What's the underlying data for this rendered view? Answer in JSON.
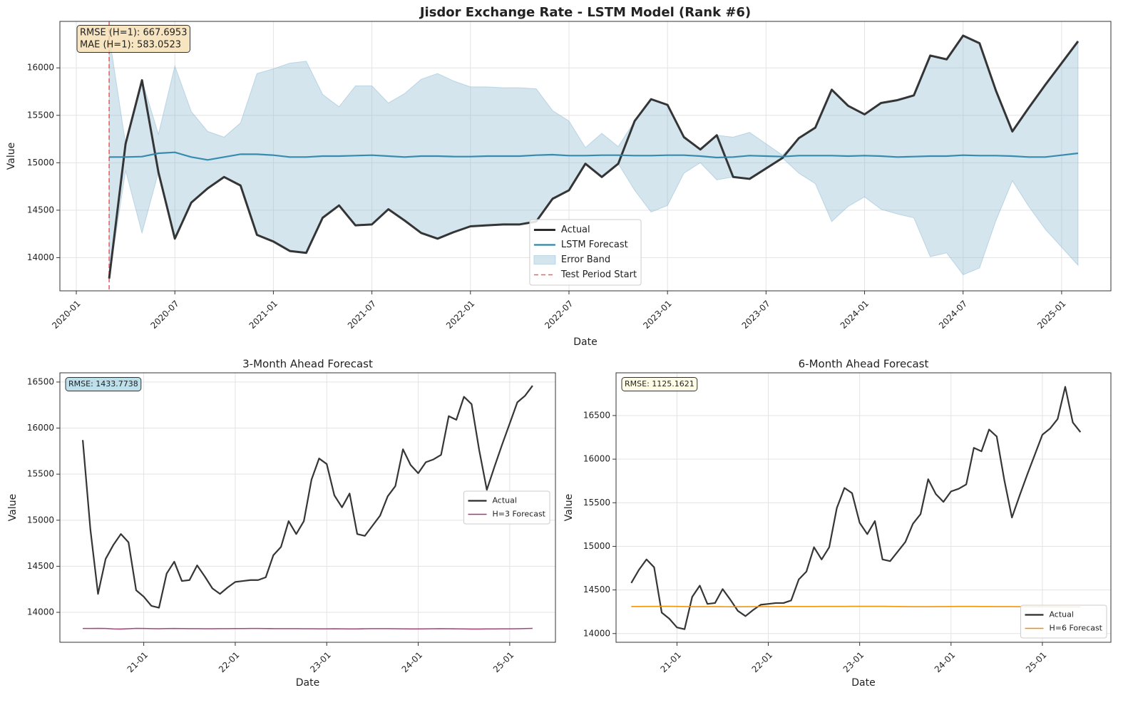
{
  "chart_data": [
    {
      "type": "line",
      "title": "Jisdor Exchange Rate - LSTM Model (Rank #6)",
      "x_label": "Date",
      "y_label": "Value",
      "x": [
        "2020-03",
        "2020-04",
        "2020-05",
        "2020-06",
        "2020-07",
        "2020-08",
        "2020-09",
        "2020-10",
        "2020-11",
        "2020-12",
        "2021-01",
        "2021-02",
        "2021-03",
        "2021-04",
        "2021-05",
        "2021-06",
        "2021-07",
        "2021-08",
        "2021-09",
        "2021-10",
        "2021-11",
        "2021-12",
        "2022-01",
        "2022-02",
        "2022-03",
        "2022-04",
        "2022-05",
        "2022-06",
        "2022-07",
        "2022-08",
        "2022-09",
        "2022-10",
        "2022-11",
        "2022-12",
        "2023-01",
        "2023-02",
        "2023-03",
        "2023-04",
        "2023-05",
        "2023-06",
        "2023-07",
        "2023-08",
        "2023-09",
        "2023-10",
        "2023-11",
        "2023-12",
        "2024-01",
        "2024-02",
        "2024-03",
        "2024-04",
        "2024-05",
        "2024-06",
        "2024-07",
        "2024-08",
        "2024-09",
        "2024-10",
        "2024-11",
        "2024-12",
        "2025-01",
        "2025-02"
      ],
      "series": [
        {
          "name": "Actual",
          "color": "#2b2b2b",
          "values": [
            13780,
            15200,
            15870,
            14900,
            14200,
            14580,
            14730,
            14850,
            14760,
            14240,
            14170,
            14070,
            14050,
            14420,
            14550,
            14340,
            14350,
            14510,
            14390,
            14260,
            14200,
            14270,
            14330,
            14340,
            14350,
            14350,
            14380,
            14620,
            14710,
            14990,
            14850,
            14990,
            15440,
            15670,
            15610,
            15270,
            15140,
            15290,
            14850,
            14830,
            14940,
            15050,
            15260,
            15370,
            15770,
            15600,
            15510,
            15630,
            15660,
            15710,
            16130,
            16090,
            16340,
            16260,
            15760,
            15330,
            15580,
            15820,
            16050,
            16280
          ]
        },
        {
          "name": "LSTM Forecast",
          "color": "#2e86ab",
          "values": [
            15060,
            15060,
            15065,
            15100,
            15110,
            15060,
            15030,
            15060,
            15090,
            15090,
            15080,
            15060,
            15060,
            15070,
            15070,
            15075,
            15080,
            15070,
            15060,
            15070,
            15070,
            15065,
            15065,
            15070,
            15070,
            15070,
            15080,
            15085,
            15075,
            15075,
            15080,
            15080,
            15075,
            15075,
            15080,
            15080,
            15070,
            15055,
            15060,
            15075,
            15070,
            15065,
            15075,
            15075,
            15075,
            15070,
            15075,
            15070,
            15060,
            15065,
            15070,
            15070,
            15080,
            15075,
            15075,
            15070,
            15060,
            15060,
            15080,
            15100
          ]
        }
      ],
      "band": {
        "name": "Error Band",
        "color": "#8ebad3",
        "upper": [
          16340,
          15200,
          15870,
          15300,
          16020,
          15540,
          15330,
          15270,
          15420,
          15940,
          15990,
          16050,
          16070,
          15720,
          15590,
          15810,
          15810,
          15630,
          15730,
          15880,
          15940,
          15860,
          15800,
          15800,
          15790,
          15790,
          15780,
          15550,
          15440,
          15160,
          15310,
          15170,
          15440,
          15670,
          15610,
          15270,
          15140,
          15290,
          15270,
          15320,
          15200,
          15080,
          15260,
          15370,
          15770,
          15600,
          15510,
          15630,
          15660,
          15710,
          16130,
          16090,
          16340,
          16260,
          15760,
          15330,
          15580,
          15820,
          16050,
          16280
        ],
        "lower": [
          13780,
          14920,
          14260,
          14900,
          14200,
          14580,
          14730,
          14850,
          14760,
          14240,
          14170,
          14070,
          14050,
          14420,
          14550,
          14340,
          14350,
          14510,
          14390,
          14260,
          14200,
          14270,
          14330,
          14340,
          14350,
          14350,
          14380,
          14620,
          14710,
          14990,
          14850,
          14990,
          14710,
          14480,
          14550,
          14890,
          15000,
          14820,
          14850,
          14830,
          14940,
          15050,
          14890,
          14780,
          14380,
          14540,
          14640,
          14510,
          14460,
          14420,
          14010,
          14050,
          13820,
          13890,
          14390,
          14810,
          14540,
          14300,
          14110,
          13920
        ]
      },
      "vline": {
        "name": "Test Period Start",
        "color": "#f06060",
        "x": "2020-03"
      },
      "xlim": [
        "2019-12",
        "2025-04"
      ],
      "ylim": [
        13650,
        16490
      ],
      "xticks": [
        "2020-01",
        "2020-07",
        "2021-01",
        "2021-07",
        "2022-01",
        "2022-07",
        "2023-01",
        "2023-07",
        "2024-01",
        "2024-07",
        "2025-01"
      ],
      "yticks": [
        14000,
        14500,
        15000,
        15500,
        16000
      ],
      "grid": true,
      "legend": "lower center",
      "annotation": {
        "lines": [
          "RMSE (H=1): 667.6953",
          "MAE (H=1): 583.0523"
        ],
        "color": "#f5deb3"
      }
    },
    {
      "type": "line",
      "title": "3-Month Ahead Forecast",
      "x_label": "Date",
      "y_label": "Value",
      "x": [
        "2020-05",
        "2020-06",
        "2020-07",
        "2020-08",
        "2020-09",
        "2020-10",
        "2020-11",
        "2020-12",
        "2021-01",
        "2021-02",
        "2021-03",
        "2021-04",
        "2021-05",
        "2021-06",
        "2021-07",
        "2021-08",
        "2021-09",
        "2021-10",
        "2021-11",
        "2021-12",
        "2022-01",
        "2022-02",
        "2022-03",
        "2022-04",
        "2022-05",
        "2022-06",
        "2022-07",
        "2022-08",
        "2022-09",
        "2022-10",
        "2022-11",
        "2022-12",
        "2023-01",
        "2023-02",
        "2023-03",
        "2023-04",
        "2023-05",
        "2023-06",
        "2023-07",
        "2023-08",
        "2023-09",
        "2023-10",
        "2023-11",
        "2023-12",
        "2024-01",
        "2024-02",
        "2024-03",
        "2024-04",
        "2024-05",
        "2024-06",
        "2024-07",
        "2024-08",
        "2024-09",
        "2024-10",
        "2024-11",
        "2024-12",
        "2025-01",
        "2025-02",
        "2025-03",
        "2025-04"
      ],
      "series": [
        {
          "name": "Actual",
          "color": "#2b2b2b",
          "values": [
            15870,
            14900,
            14200,
            14580,
            14730,
            14850,
            14760,
            14240,
            14170,
            14070,
            14050,
            14420,
            14550,
            14340,
            14350,
            14510,
            14390,
            14260,
            14200,
            14270,
            14330,
            14340,
            14350,
            14350,
            14380,
            14620,
            14710,
            14990,
            14850,
            14990,
            15440,
            15670,
            15610,
            15270,
            15140,
            15290,
            14850,
            14830,
            14940,
            15050,
            15260,
            15370,
            15770,
            15600,
            15510,
            15630,
            15660,
            15710,
            16130,
            16090,
            16340,
            16260,
            15760,
            15330,
            15580,
            15820,
            16050,
            16280,
            16350,
            16460
          ]
        },
        {
          "name": "H=3 Forecast",
          "color": "#a23b72",
          "values": [
            13825,
            13825,
            13826,
            13825,
            13820,
            13819,
            13822,
            13826,
            13825,
            13823,
            13822,
            13824,
            13825,
            13824,
            13823,
            13823,
            13822,
            13822,
            13823,
            13823,
            13824,
            13824,
            13825,
            13825,
            13824,
            13823,
            13823,
            13823,
            13823,
            13822,
            13822,
            13821,
            13821,
            13822,
            13821,
            13820,
            13820,
            13822,
            13823,
            13823,
            13823,
            13822,
            13821,
            13820,
            13820,
            13821,
            13822,
            13823,
            13822,
            13821,
            13820,
            13819,
            13819,
            13820,
            13820,
            13821,
            13821,
            13822,
            13824,
            13826
          ]
        }
      ],
      "xlim": [
        "2020-02",
        "2025-07"
      ],
      "ylim": [
        13675,
        16600
      ],
      "xticks": [
        {
          "value": "2021-01",
          "label": "21-01"
        },
        {
          "value": "2022-01",
          "label": "22-01"
        },
        {
          "value": "2023-01",
          "label": "23-01"
        },
        {
          "value": "2024-01",
          "label": "24-01"
        },
        {
          "value": "2025-01",
          "label": "25-01"
        }
      ],
      "yticks": [
        14000,
        14500,
        15000,
        15500,
        16000,
        16500
      ],
      "grid": true,
      "legend": "center right",
      "annotation": {
        "lines": [
          "RMSE: 1433.7738"
        ],
        "color": "#add8e6"
      }
    },
    {
      "type": "line",
      "title": "6-Month Ahead Forecast",
      "x_label": "Date",
      "y_label": "Value",
      "x": [
        "2020-07",
        "2020-08",
        "2020-09",
        "2020-10",
        "2020-11",
        "2020-12",
        "2021-01",
        "2021-02",
        "2021-03",
        "2021-04",
        "2021-05",
        "2021-06",
        "2021-07",
        "2021-08",
        "2021-09",
        "2021-10",
        "2021-11",
        "2021-12",
        "2022-01",
        "2022-02",
        "2022-03",
        "2022-04",
        "2022-05",
        "2022-06",
        "2022-07",
        "2022-08",
        "2022-09",
        "2022-10",
        "2022-11",
        "2022-12",
        "2023-01",
        "2023-02",
        "2023-03",
        "2023-04",
        "2023-05",
        "2023-06",
        "2023-07",
        "2023-08",
        "2023-09",
        "2023-10",
        "2023-11",
        "2023-12",
        "2024-01",
        "2024-02",
        "2024-03",
        "2024-04",
        "2024-05",
        "2024-06",
        "2024-07",
        "2024-08",
        "2024-09",
        "2024-10",
        "2024-11",
        "2024-12",
        "2025-01",
        "2025-02",
        "2025-03",
        "2025-04",
        "2025-05",
        "2025-06"
      ],
      "series": [
        {
          "name": "Actual",
          "color": "#2b2b2b",
          "values": [
            14580,
            14730,
            14850,
            14760,
            14240,
            14170,
            14070,
            14050,
            14420,
            14550,
            14340,
            14350,
            14510,
            14390,
            14260,
            14200,
            14270,
            14330,
            14340,
            14350,
            14350,
            14380,
            14620,
            14710,
            14990,
            14850,
            14990,
            15440,
            15670,
            15610,
            15270,
            15140,
            15290,
            14850,
            14830,
            14940,
            15050,
            15260,
            15370,
            15770,
            15600,
            15510,
            15630,
            15660,
            15710,
            16130,
            16090,
            16340,
            16260,
            15760,
            15330,
            15580,
            15820,
            16050,
            16280,
            16350,
            16460,
            16830,
            16420,
            16310
          ]
        },
        {
          "name": "H=6 Forecast",
          "color": "#f18f01",
          "values": [
            14310,
            14310,
            14311,
            14311,
            14312,
            14312,
            14311,
            14309,
            14308,
            14308,
            14309,
            14309,
            14308,
            14307,
            14307,
            14308,
            14308,
            14309,
            14309,
            14309,
            14310,
            14310,
            14310,
            14310,
            14310,
            14311,
            14311,
            14311,
            14311,
            14312,
            14312,
            14312,
            14312,
            14312,
            14311,
            14310,
            14309,
            14308,
            14308,
            14308,
            14309,
            14309,
            14310,
            14311,
            14311,
            14311,
            14310,
            14310,
            14309,
            14309,
            14309,
            14308,
            14308,
            14307,
            14307,
            14306,
            14306,
            14305,
            14305,
            14305
          ]
        }
      ],
      "xlim": [
        "2020-05",
        "2025-10"
      ],
      "ylim": [
        13900,
        16990
      ],
      "xticks": [
        {
          "value": "2021-01",
          "label": "21-01"
        },
        {
          "value": "2022-01",
          "label": "22-01"
        },
        {
          "value": "2023-01",
          "label": "23-01"
        },
        {
          "value": "2024-01",
          "label": "24-01"
        },
        {
          "value": "2025-01",
          "label": "25-01"
        }
      ],
      "yticks": [
        14000,
        14500,
        15000,
        15500,
        16000,
        16500
      ],
      "grid": true,
      "legend": "lower right",
      "annotation": {
        "lines": [
          "RMSE: 1125.1621"
        ],
        "color": "#fffde0"
      }
    }
  ]
}
